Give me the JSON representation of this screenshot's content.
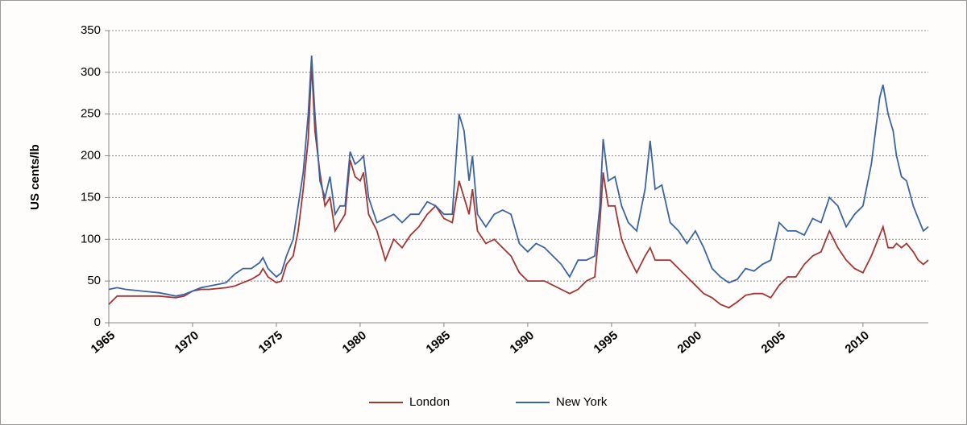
{
  "chart_data": {
    "type": "line",
    "y_label": "US cents/lb",
    "x": [
      1965,
      1965.5,
      1966,
      1967,
      1968,
      1969,
      1969.5,
      1970,
      1970.5,
      1971,
      1972,
      1972.5,
      1973,
      1973.5,
      1974,
      1974.2,
      1974.5,
      1975,
      1975.3,
      1975.6,
      1976,
      1976.3,
      1976.6,
      1976.9,
      1977.1,
      1977.3,
      1977.6,
      1977.9,
      1978.2,
      1978.5,
      1978.8,
      1979.1,
      1979.4,
      1979.7,
      1980,
      1980.2,
      1980.5,
      1981,
      1981.5,
      1982,
      1982.5,
      1983,
      1983.5,
      1984,
      1984.5,
      1985,
      1985.5,
      1985.9,
      1986.2,
      1986.5,
      1986.7,
      1987,
      1987.5,
      1988,
      1988.5,
      1989,
      1989.5,
      1990,
      1990.5,
      1991,
      1991.5,
      1992,
      1992.5,
      1993,
      1993.5,
      1994,
      1994.3,
      1994.5,
      1994.8,
      1995.2,
      1995.6,
      1996,
      1996.5,
      1997,
      1997.3,
      1997.6,
      1998,
      1998.5,
      1999,
      1999.5,
      2000,
      2000.5,
      2001,
      2001.5,
      2002,
      2002.5,
      2003,
      2003.5,
      2004,
      2004.5,
      2005,
      2005.5,
      2006,
      2006.5,
      2007,
      2007.5,
      2008,
      2008.5,
      2009,
      2009.5,
      2010,
      2010.5,
      2011,
      2011.2,
      2011.5,
      2011.8,
      2012,
      2012.3,
      2012.6,
      2013,
      2013.3,
      2013.6,
      2013.9
    ],
    "series": [
      {
        "name": "London",
        "color": "#a33532",
        "values": [
          22,
          32,
          32,
          32,
          32,
          30,
          32,
          38,
          40,
          40,
          42,
          44,
          48,
          52,
          58,
          65,
          55,
          48,
          50,
          70,
          80,
          110,
          160,
          220,
          310,
          230,
          180,
          140,
          150,
          110,
          120,
          130,
          195,
          175,
          170,
          180,
          130,
          110,
          75,
          100,
          90,
          105,
          115,
          130,
          140,
          125,
          120,
          170,
          150,
          130,
          160,
          110,
          95,
          100,
          90,
          80,
          60,
          50,
          50,
          50,
          45,
          40,
          35,
          40,
          50,
          55,
          120,
          180,
          140,
          140,
          100,
          80,
          60,
          80,
          90,
          75,
          75,
          75,
          65,
          55,
          45,
          35,
          30,
          22,
          18,
          25,
          33,
          35,
          35,
          30,
          45,
          55,
          55,
          70,
          80,
          85,
          110,
          90,
          75,
          65,
          60,
          80,
          105,
          115,
          90,
          90,
          95,
          90,
          95,
          85,
          75,
          70,
          75
        ]
      },
      {
        "name": "New York",
        "color": "#3a64a0",
        "values": [
          40,
          42,
          40,
          38,
          36,
          32,
          34,
          38,
          42,
          44,
          48,
          58,
          65,
          65,
          72,
          78,
          65,
          55,
          60,
          80,
          100,
          140,
          180,
          250,
          320,
          250,
          170,
          150,
          175,
          130,
          140,
          140,
          205,
          190,
          195,
          200,
          150,
          120,
          125,
          130,
          120,
          130,
          130,
          145,
          140,
          130,
          130,
          250,
          230,
          170,
          200,
          130,
          115,
          130,
          135,
          130,
          95,
          85,
          95,
          90,
          80,
          70,
          55,
          75,
          75,
          80,
          140,
          220,
          170,
          175,
          140,
          120,
          110,
          160,
          218,
          160,
          165,
          120,
          110,
          95,
          110,
          90,
          65,
          55,
          48,
          52,
          65,
          62,
          70,
          75,
          120,
          110,
          110,
          105,
          125,
          120,
          150,
          140,
          115,
          130,
          140,
          190,
          270,
          285,
          250,
          230,
          200,
          175,
          170,
          140,
          125,
          110,
          115
        ]
      }
    ],
    "xlim": [
      1965,
      2013.9
    ],
    "xticks": [
      1965,
      1970,
      1975,
      1980,
      1985,
      1990,
      1995,
      2000,
      2005,
      2010
    ],
    "ylim": [
      0,
      350
    ],
    "yticks": [
      0,
      50,
      100,
      150,
      200,
      250,
      300,
      350
    ],
    "grid": true,
    "legend": "bottom"
  }
}
